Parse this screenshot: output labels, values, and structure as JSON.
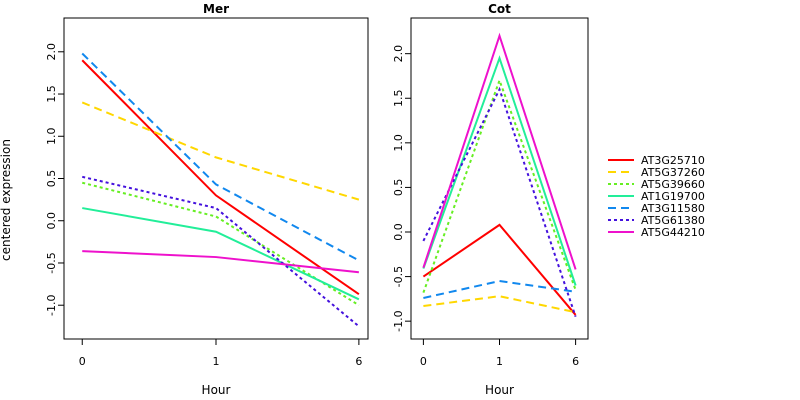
{
  "ylabel": "centered expression",
  "legend": {
    "placement": "right",
    "entries": [
      "AT3G25710",
      "AT5G37260",
      "AT5G39660",
      "AT1G19700",
      "AT3G11580",
      "AT5G61380",
      "AT5G44210"
    ]
  },
  "series_styles": [
    {
      "name": "AT3G25710",
      "color": "#ff0000",
      "dash": "solid"
    },
    {
      "name": "AT5G37260",
      "color": "#ffd700",
      "dash": "dashed"
    },
    {
      "name": "AT5G39660",
      "color": "#66ee22",
      "dash": "dotted"
    },
    {
      "name": "AT1G19700",
      "color": "#22ee99",
      "dash": "solid"
    },
    {
      "name": "AT3G11580",
      "color": "#1188ee",
      "dash": "dashed"
    },
    {
      "name": "AT5G61380",
      "color": "#4411dd",
      "dash": "dotted"
    },
    {
      "name": "AT5G44210",
      "color": "#ee11cc",
      "dash": "solid"
    }
  ],
  "chart_data": [
    {
      "type": "line",
      "title": "Mer",
      "xlabel": "Hour",
      "categories": [
        "0",
        "1",
        "6"
      ],
      "ylim": [
        -1.4,
        2.4
      ],
      "yticks": [
        -1.0,
        -0.5,
        0.0,
        0.5,
        1.0,
        1.5,
        2.0
      ],
      "grid": false,
      "series": [
        {
          "name": "AT3G25710",
          "values": [
            1.9,
            0.3,
            -0.87
          ]
        },
        {
          "name": "AT5G37260",
          "values": [
            1.4,
            0.75,
            0.25
          ]
        },
        {
          "name": "AT5G39660",
          "values": [
            0.45,
            0.05,
            -1.0
          ]
        },
        {
          "name": "AT1G19700",
          "values": [
            0.15,
            -0.13,
            -0.93
          ]
        },
        {
          "name": "AT3G11580",
          "values": [
            1.98,
            0.43,
            -0.47
          ]
        },
        {
          "name": "AT5G61380",
          "values": [
            0.52,
            0.15,
            -1.25
          ]
        },
        {
          "name": "AT5G44210",
          "values": [
            -0.36,
            -0.43,
            -0.61
          ]
        }
      ]
    },
    {
      "type": "line",
      "title": "Cot",
      "xlabel": "Hour",
      "categories": [
        "0",
        "1",
        "6"
      ],
      "ylim": [
        -1.2,
        2.4
      ],
      "yticks": [
        -1.0,
        -0.5,
        0.0,
        0.5,
        1.0,
        1.5,
        2.0
      ],
      "grid": false,
      "series": [
        {
          "name": "AT3G25710",
          "values": [
            -0.5,
            0.08,
            -0.93
          ]
        },
        {
          "name": "AT5G37260",
          "values": [
            -0.83,
            -0.72,
            -0.9
          ]
        },
        {
          "name": "AT5G39660",
          "values": [
            -0.68,
            1.7,
            -0.65
          ]
        },
        {
          "name": "AT1G19700",
          "values": [
            -0.41,
            1.95,
            -0.6
          ]
        },
        {
          "name": "AT3G11580",
          "values": [
            -0.74,
            -0.55,
            -0.67
          ]
        },
        {
          "name": "AT5G61380",
          "values": [
            -0.1,
            1.6,
            -0.95
          ]
        },
        {
          "name": "AT5G44210",
          "values": [
            -0.4,
            2.2,
            -0.42
          ]
        }
      ]
    }
  ]
}
